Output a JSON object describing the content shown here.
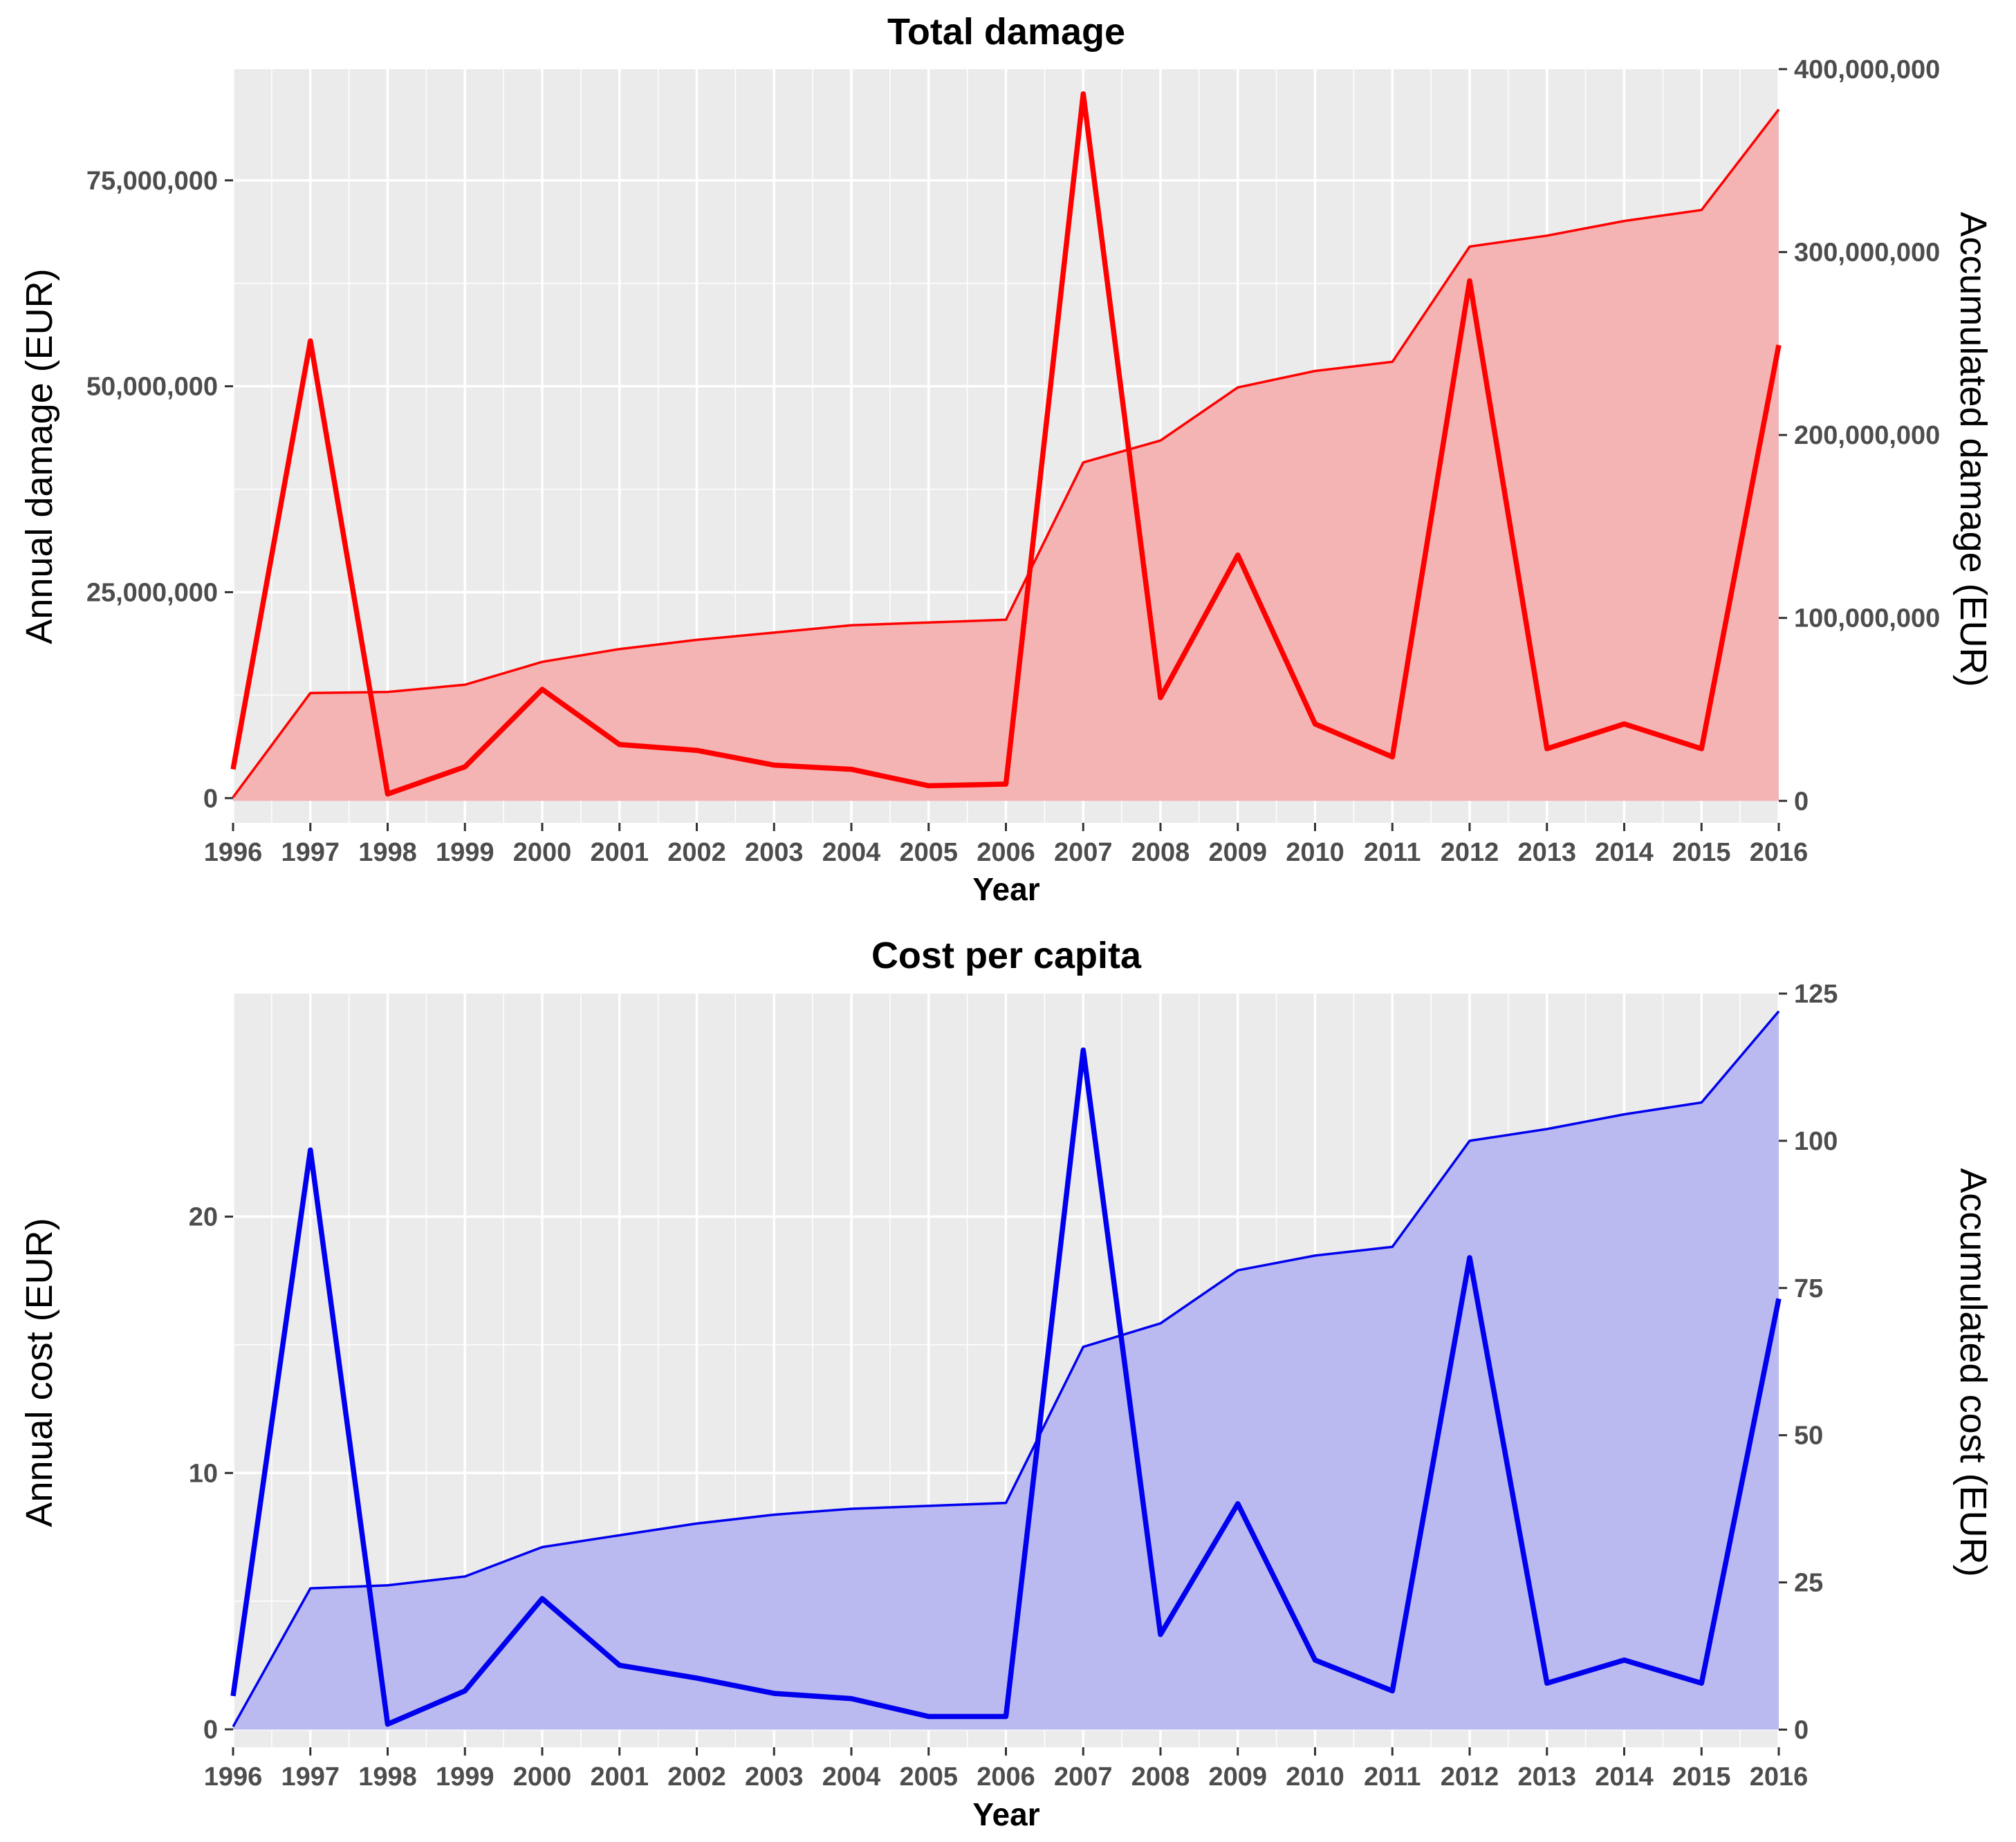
{
  "chart_data": [
    {
      "type": "line",
      "title": "Total damage",
      "xlabel": "Year",
      "ylabel_left": "Annual damage (EUR)",
      "ylabel_right": "Accumulated  damage (EUR)",
      "x": [
        1996,
        1997,
        1998,
        1999,
        2000,
        2001,
        2002,
        2003,
        2004,
        2005,
        2006,
        2007,
        2008,
        2009,
        2010,
        2011,
        2012,
        2013,
        2014,
        2015,
        2016
      ],
      "xlim": [
        1996,
        2016
      ],
      "ylim_left": [
        -3000000,
        88500000
      ],
      "ylim_right": [
        -12000000,
        400000000
      ],
      "left_ticks": [
        0,
        25000000,
        50000000,
        75000000
      ],
      "left_tick_labels": [
        "0",
        "25,000,000",
        "50,000,000",
        "75,000,000"
      ],
      "right_ticks": [
        0,
        100000000,
        200000000,
        300000000,
        400000000
      ],
      "right_tick_labels": [
        "0",
        "100,000,000",
        "200,000,000",
        "300,000,000",
        "400,000,000"
      ],
      "grid": true,
      "colors": {
        "line": "#ff0000",
        "fill": "#f4b4b4",
        "panel": "#ebebeb",
        "grid": "#ffffff"
      },
      "series": [
        {
          "name": "Annual damage",
          "axis": "left",
          "style": "thick-line",
          "values": [
            3500000,
            55500000,
            500000,
            3800000,
            13200000,
            6500000,
            5800000,
            4000000,
            3500000,
            1500000,
            1700000,
            85500000,
            12200000,
            29500000,
            9000000,
            5000000,
            62800000,
            6000000,
            9000000,
            6000000,
            55000000
          ]
        },
        {
          "name": "Accumulated damage",
          "axis": "right",
          "style": "area",
          "values": [
            2000000,
            59000000,
            59500000,
            63500000,
            76000000,
            83000000,
            88000000,
            92000000,
            96000000,
            97500000,
            99000000,
            185000000,
            197000000,
            226000000,
            235000000,
            240000000,
            303000000,
            309000000,
            317000000,
            323000000,
            378000000
          ]
        }
      ]
    },
    {
      "type": "line",
      "title": "Cost per capita",
      "xlabel": "Year",
      "ylabel_left": "Annual cost (EUR)",
      "ylabel_right": "Accumulated  cost (EUR)",
      "x": [
        1996,
        1997,
        1998,
        1999,
        2000,
        2001,
        2002,
        2003,
        2004,
        2005,
        2006,
        2007,
        2008,
        2009,
        2010,
        2011,
        2012,
        2013,
        2014,
        2015,
        2016
      ],
      "xlim": [
        1996,
        2016
      ],
      "ylim_left": [
        -0.7,
        28.7
      ],
      "ylim_right": [
        -3,
        125
      ],
      "left_ticks": [
        0,
        10,
        20
      ],
      "left_tick_labels": [
        "0",
        "10",
        "20"
      ],
      "right_ticks": [
        0,
        25,
        50,
        75,
        100,
        125
      ],
      "right_tick_labels": [
        "0",
        "25",
        "50",
        "75",
        "100",
        "125"
      ],
      "grid": true,
      "colors": {
        "line": "#0000ee",
        "fill": "#babaf0",
        "panel": "#ebebeb",
        "grid": "#ffffff"
      },
      "series": [
        {
          "name": "Annual cost",
          "axis": "left",
          "style": "thick-line",
          "values": [
            1.3,
            22.6,
            0.2,
            1.5,
            5.1,
            2.5,
            2.0,
            1.4,
            1.2,
            0.5,
            0.5,
            26.5,
            3.7,
            8.8,
            2.7,
            1.5,
            18.4,
            1.8,
            2.7,
            1.8,
            16.8
          ]
        },
        {
          "name": "Accumulated cost",
          "axis": "right",
          "style": "area",
          "values": [
            0.5,
            24,
            24.5,
            26,
            31,
            33,
            35,
            36.5,
            37.5,
            38,
            38.5,
            65,
            69,
            78,
            80.5,
            82,
            100,
            102,
            104.5,
            106.5,
            122
          ]
        }
      ]
    }
  ]
}
